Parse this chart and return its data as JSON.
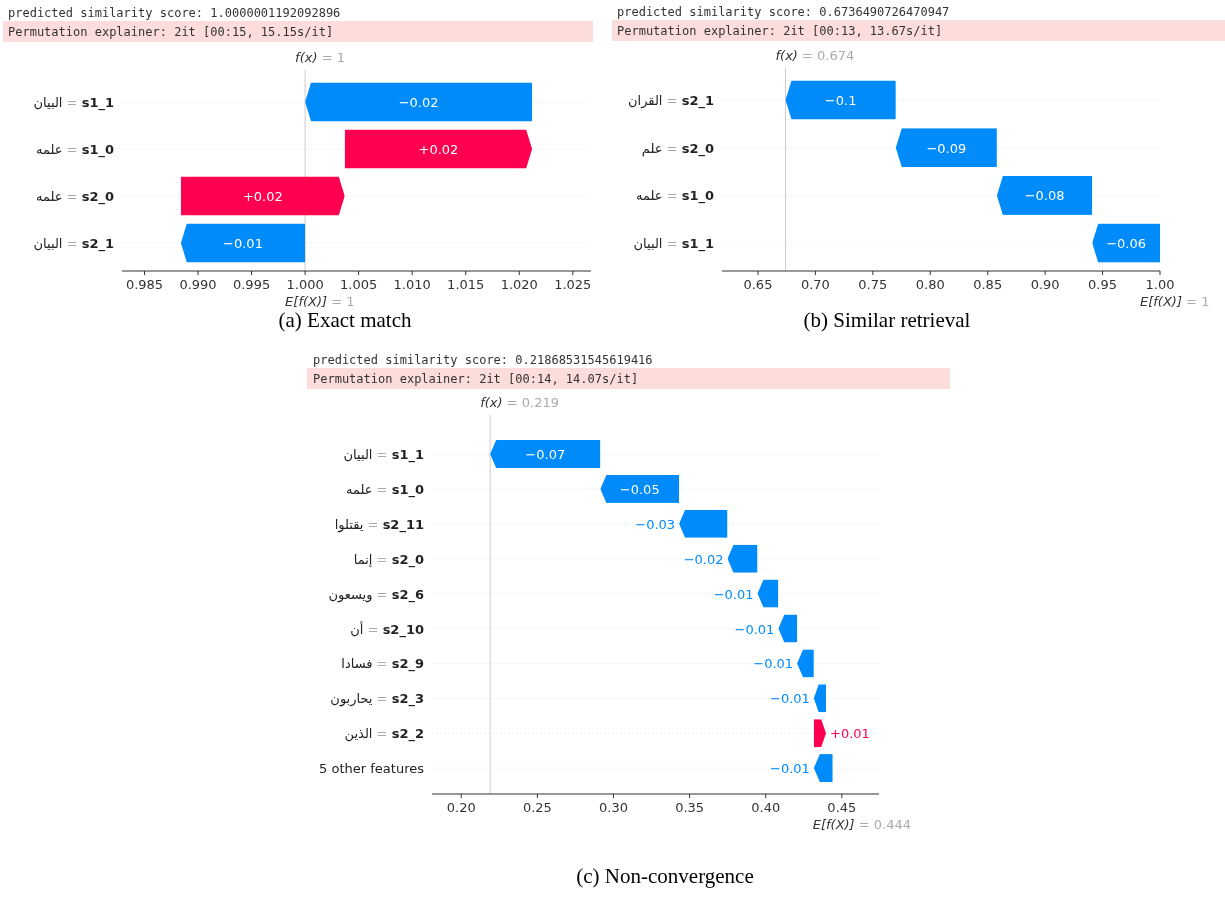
{
  "chart_data": [
    {
      "type": "bar",
      "orientation": "horizontal",
      "title": "predicted similarity score: 1.0000001192092896",
      "subtitle": "Permutation explainer: 2it [00:15, 15.15s/it]",
      "categories": [
        "البيان = s1_1",
        "علمه = s1_0",
        "علمه = s2_0",
        "البيان = s2_1"
      ],
      "values": [
        -0.0212,
        0.0175,
        0.0153,
        -0.0116
      ],
      "base": [
        1.0212,
        1.0037,
        0.9884,
        1.0
      ],
      "colors": [
        "#008bfb",
        "#ff0051",
        "#ff0051",
        "#008bfb"
      ],
      "value_labels": [
        "−0.02",
        "+0.02",
        "+0.02",
        "−0.01"
      ],
      "xlim": [
        0.9829,
        1.0267
      ],
      "xticks": [
        {
          "value": 0.985,
          "label": "0.985"
        },
        {
          "value": 0.99,
          "label": "0.990"
        },
        {
          "value": 0.995,
          "label": "0.995"
        },
        {
          "value": 1.0,
          "label": "1.000"
        },
        {
          "value": 1.005,
          "label": "1.005"
        },
        {
          "value": 1.01,
          "label": "1.010"
        },
        {
          "value": 1.015,
          "label": "1.015"
        },
        {
          "value": 1.02,
          "label": "1.020"
        },
        {
          "value": 1.025,
          "label": "1.025"
        }
      ],
      "ref_lines": [
        {
          "axis": "x",
          "value": 1.0,
          "label": "f(x) = 1",
          "color": "#cccccc"
        }
      ],
      "grid": "y",
      "annotations": [
        "E[f(X)] = 1",
        "(a) Exact match"
      ]
    },
    {
      "type": "bar",
      "orientation": "horizontal",
      "title": "predicted similarity score: 0.6736490726470947",
      "subtitle": "Permutation explainer: 2it [00:13, 13.67s/it]",
      "categories": [
        "القران = s2_1",
        "علم = s2_0",
        "علمه = s1_0",
        "البيان = s1_1"
      ],
      "values": [
        -0.096,
        -0.088,
        -0.083,
        -0.059
      ],
      "base": [
        0.77,
        0.858,
        0.941,
        1.0
      ],
      "colors": [
        "#008bfb",
        "#008bfb",
        "#008bfb",
        "#008bfb"
      ],
      "value_labels": [
        "−0.1",
        "−0.09",
        "−0.08",
        "−0.06"
      ],
      "xlim": [
        0.6187,
        1.0
      ],
      "xticks": [
        {
          "value": 0.65,
          "label": "0.65"
        },
        {
          "value": 0.7,
          "label": "0.70"
        },
        {
          "value": 0.75,
          "label": "0.75"
        },
        {
          "value": 0.8,
          "label": "0.80"
        },
        {
          "value": 0.85,
          "label": "0.85"
        },
        {
          "value": 0.9,
          "label": "0.90"
        },
        {
          "value": 0.95,
          "label": "0.95"
        },
        {
          "value": 1.0,
          "label": "1.00"
        }
      ],
      "ref_lines": [
        {
          "axis": "x",
          "value": 0.674,
          "label": "f(x) = 0.674",
          "color": "#cccccc"
        }
      ],
      "grid": "y",
      "annotations": [
        "E[f(X)] = 1",
        "(b) Similar retrieval"
      ]
    },
    {
      "type": "bar",
      "orientation": "horizontal",
      "title": "predicted similarity score: 0.21868531545619416",
      "subtitle": "Permutation explainer: 2it [00:14, 14.07s/it]",
      "categories": [
        "البيان = s1_1",
        "علمه = s1_0",
        "يقتلوا = s2_11",
        "إنما = s2_0",
        "ويسعون = s2_6",
        "أن = s2_10",
        "فسادا = s2_9",
        "يحاربون = s2_3",
        "الذين = s2_2",
        "5 other features"
      ],
      "values": [
        -0.0724,
        -0.0517,
        -0.0318,
        -0.0197,
        -0.0137,
        -0.0123,
        -0.011,
        -0.008,
        0.008,
        -0.0124
      ],
      "base": [
        0.2914,
        0.3431,
        0.3749,
        0.3946,
        0.4083,
        0.4206,
        0.4316,
        0.4396,
        0.4316,
        0.444
      ],
      "colors": [
        "#008bfb",
        "#008bfb",
        "#008bfb",
        "#008bfb",
        "#008bfb",
        "#008bfb",
        "#008bfb",
        "#008bfb",
        "#ff0051",
        "#008bfb"
      ],
      "value_labels": [
        "−0.07",
        "−0.05",
        "−0.03",
        "−0.02",
        "−0.01",
        "−0.01",
        "−0.01",
        "−0.01",
        "+0.01",
        "−0.01"
      ],
      "xlim": [
        0.1808,
        0.4744
      ],
      "xticks": [
        {
          "value": 0.2,
          "label": "0.20"
        },
        {
          "value": 0.25,
          "label": "0.25"
        },
        {
          "value": 0.3,
          "label": "0.30"
        },
        {
          "value": 0.35,
          "label": "0.35"
        },
        {
          "value": 0.4,
          "label": "0.40"
        },
        {
          "value": 0.45,
          "label": "0.45"
        }
      ],
      "ref_lines": [
        {
          "axis": "x",
          "value": 0.219,
          "label": "f(x) = 0.219",
          "color": "#cccccc"
        }
      ],
      "grid": "y",
      "annotations": [
        "E[f(X)] = 0.444",
        "(c) Non-convergence"
      ]
    }
  ]
}
